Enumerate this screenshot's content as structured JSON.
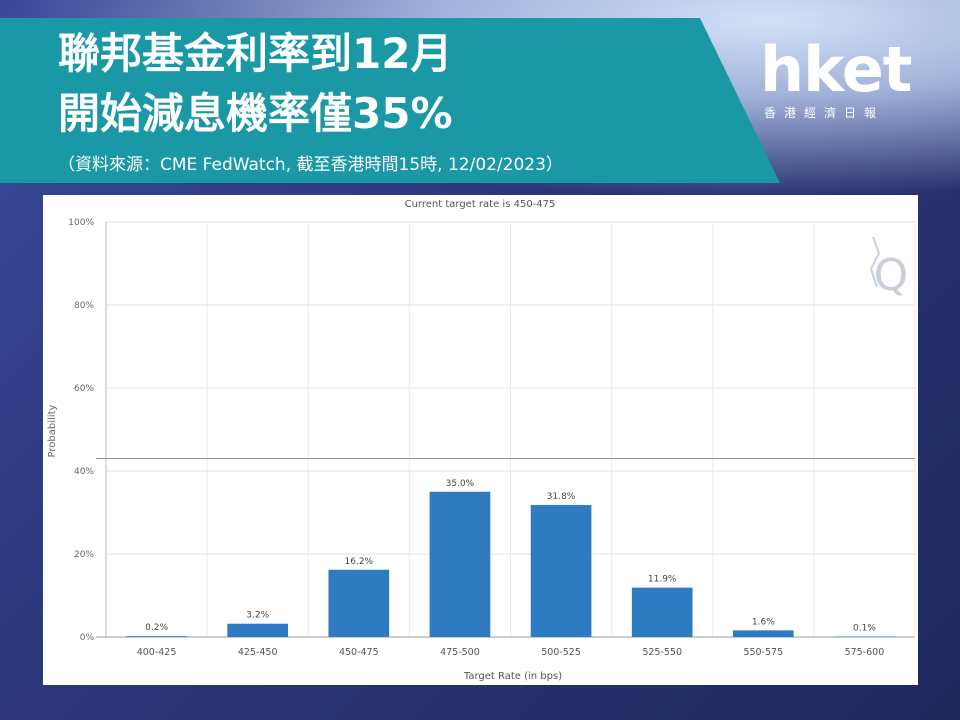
{
  "header": {
    "title_line1": "聯邦基金利率到12月",
    "title_line2": "開始減息機率僅35%",
    "source": "（資料來源：CME FedWatch, 截至香港時間15時, 12/02/2023）"
  },
  "logo": {
    "name": "hket",
    "subtitle": "香港經濟日報"
  },
  "colors": {
    "banner": "#1a98a5",
    "bar": "#2f7bc1",
    "background": "#2b3578"
  },
  "chart_data": {
    "type": "bar",
    "title": "Current target rate is 450-475",
    "xlabel": "Target Rate (in bps)",
    "ylabel": "Probability",
    "categories": [
      "400-425",
      "425-450",
      "450-475",
      "475-500",
      "500-525",
      "525-550",
      "550-575",
      "575-600"
    ],
    "values": [
      0.2,
      3.2,
      16.2,
      35.0,
      31.8,
      11.9,
      1.6,
      0.1
    ],
    "value_labels": [
      "0.2%",
      "3.2%",
      "16.2%",
      "35.0%",
      "31.8%",
      "11.9%",
      "1.6%",
      "0.1%"
    ],
    "ylim": [
      0,
      100
    ],
    "yticks": [
      0,
      20,
      40,
      60,
      80,
      100
    ],
    "ytick_labels": [
      "0%",
      "20%",
      "40%",
      "60%",
      "80%",
      "100%"
    ],
    "grid": true,
    "reference_line": 43
  }
}
